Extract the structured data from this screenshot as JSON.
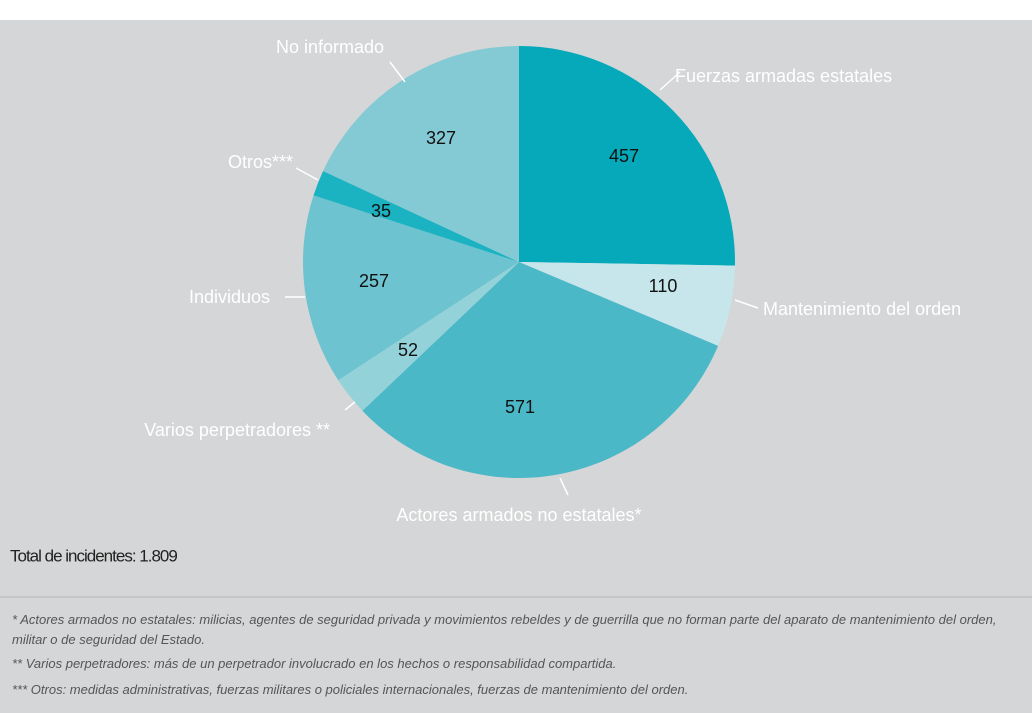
{
  "chart_data": {
    "type": "pie",
    "categories": [
      "Fuerzas armadas estatales",
      "Mantenimiento del orden",
      "Actores armados no estatales*",
      "Varios perpetradores **",
      "Individuos",
      "Otros***",
      "No informado"
    ],
    "values": [
      457,
      110,
      571,
      52,
      257,
      35,
      327
    ],
    "colors": [
      "#05a9ba",
      "#c6e6ec",
      "#4bb8c7",
      "#93d2d9",
      "#6dc3cf",
      "#1bb2c1",
      "#84cad5"
    ],
    "total_label": "Total de incidentes: 1.809"
  },
  "footnotes": [
    "* Actores armados no estatales: milicias, agentes de seguridad privada y movimientos rebeldes y de guerrilla que no forman parte del aparato de mantenimiento del orden, militar o de seguridad del Estado.",
    "** Varios perpetradores: más de un perpetrador involucrado en los hechos o  responsabilidad compartida.",
    "*** Otros: medidas administrativas, fuerzas militares o policiales internacionales, fuerzas de mantenimiento del orden."
  ]
}
